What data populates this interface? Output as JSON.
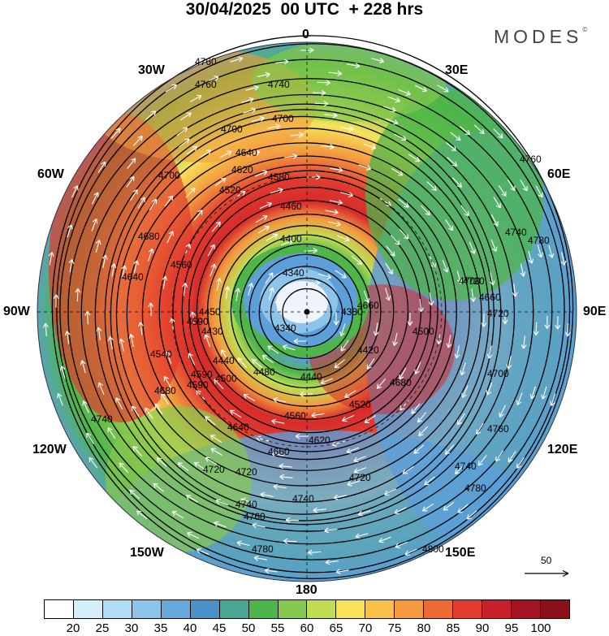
{
  "title": "30/04/2025  00 UTC  + 228 hrs",
  "brand": "MODES",
  "brand_mark": "©",
  "longitude_labels": {
    "top": "0",
    "e30": "30E",
    "e60": "60E",
    "e90": "90E",
    "e120": "120E",
    "e150": "150E",
    "bottom": "180",
    "w150": "150W",
    "w120": "120W",
    "w90": "90W",
    "w60": "60W",
    "w30": "30W"
  },
  "reference_vector_label": "50",
  "colorbar": {
    "colors": [
      "#ffffff",
      "#d4eefb",
      "#b1dcf5",
      "#8cc4ea",
      "#66a8dc",
      "#4a91ca",
      "#4ba594",
      "#4db54a",
      "#86c84d",
      "#c0dc53",
      "#f7e25a",
      "#f8c149",
      "#f39a3f",
      "#ec6a34",
      "#e13b2e",
      "#c8202c",
      "#a41423",
      "#8a1019"
    ],
    "tick_labels": [
      "20",
      "25",
      "30",
      "35",
      "40",
      "45",
      "50",
      "55",
      "60",
      "65",
      "70",
      "75",
      "80",
      "85",
      "90",
      "95",
      "100"
    ]
  },
  "contour_labels": [
    "4760",
    "4740",
    "4760",
    "4700",
    "4700",
    "4640",
    "4620",
    "4580",
    "4520",
    "4460",
    "4400",
    "4340",
    "4340",
    "4700",
    "4760",
    "4740",
    "4680",
    "4640",
    "4590",
    "4560",
    "4540",
    "4500",
    "4440",
    "4680",
    "4740",
    "4780",
    "4720",
    "4700",
    "4660",
    "4720",
    "4500",
    "4420",
    "4480",
    "4440",
    "4520",
    "4560",
    "4620",
    "4590",
    "4680",
    "4640",
    "4660",
    "4700",
    "4760",
    "4740",
    "4720",
    "4720",
    "4740",
    "4760",
    "4780",
    "4780",
    "4800",
    "4720",
    "4740",
    "4660",
    "4380",
    "4430",
    "4450",
    "4590"
  ],
  "colors": {
    "core": "#eef4fa",
    "inner_blue": "#5d9fd8",
    "ring_green": "#4db54a",
    "ring_red": "#d62b2b",
    "outer_orange": "#f39a3f"
  }
}
